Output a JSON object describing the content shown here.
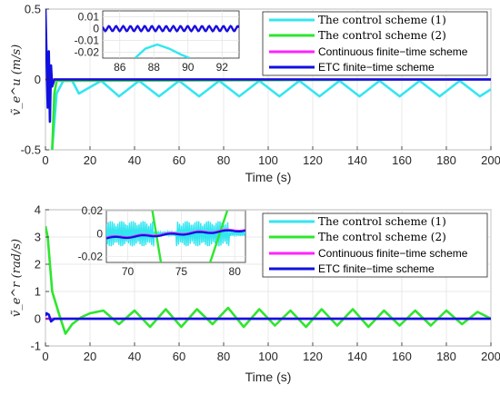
{
  "chart_data": [
    {
      "type": "line",
      "ylabel": "ṽ_e^u (m/s)",
      "xlabel": "Time (s)",
      "xlim": [
        0,
        200
      ],
      "ylim": [
        -0.5,
        0.5
      ],
      "xticks": [
        "0",
        "20",
        "40",
        "60",
        "80",
        "100",
        "120",
        "140",
        "160",
        "180",
        "200"
      ],
      "yticks": [
        "-0.5",
        "0",
        "0.5"
      ],
      "legend_position": "top-right",
      "series": [
        {
          "name": "The control scheme (1)",
          "color": "#33e6f0",
          "x": [
            3,
            5,
            8,
            12,
            15,
            25,
            33,
            42,
            51,
            60,
            69,
            78,
            87,
            96,
            105,
            114,
            123,
            132,
            141,
            150,
            159,
            168,
            177,
            186,
            195,
            200
          ],
          "y": [
            -0.5,
            -0.1,
            -0.01,
            -0.01,
            -0.1,
            -0.01,
            -0.12,
            -0.01,
            -0.12,
            -0.01,
            -0.12,
            -0.01,
            -0.12,
            -0.01,
            -0.12,
            -0.01,
            -0.12,
            -0.01,
            -0.12,
            -0.01,
            -0.12,
            -0.01,
            -0.12,
            -0.01,
            -0.12,
            -0.07
          ]
        },
        {
          "name": "The control scheme (2)",
          "color": "#2ee62e",
          "x": [
            3,
            4,
            5,
            200
          ],
          "y": [
            -0.5,
            -0.1,
            -0.01,
            0
          ]
        },
        {
          "name": "Continuous finite−time scheme",
          "color": "#ff22ff",
          "x": [
            0,
            200
          ],
          "y": [
            0,
            0
          ]
        },
        {
          "name": "ETC finite−time scheme",
          "color": "#1010e0",
          "x": [
            0,
            1,
            1.5,
            2,
            2.5,
            3,
            4,
            200
          ],
          "y": [
            0.5,
            -0.2,
            0.2,
            -0.3,
            0.1,
            -0.05,
            0,
            0
          ]
        }
      ],
      "inset": {
        "xlim": [
          85,
          93
        ],
        "ylim": [
          -0.025,
          0.015
        ],
        "xticks": [
          "86",
          "88",
          "90",
          "92"
        ],
        "yticks": [
          "0.01",
          "0",
          "-0.01",
          "-0.02"
        ],
        "cyan_x": [
          86.9,
          87.5,
          88.2,
          88.9,
          89.6,
          90.1
        ],
        "cyan_y": [
          -0.025,
          -0.017,
          -0.0135,
          -0.017,
          -0.022,
          -0.025
        ]
      }
    },
    {
      "type": "line",
      "ylabel": "ṽ_e^r (rad/s)",
      "xlabel": "Time (s)",
      "xlim": [
        0,
        200
      ],
      "ylim": [
        -1,
        4
      ],
      "xticks": [
        "0",
        "20",
        "40",
        "60",
        "80",
        "100",
        "120",
        "140",
        "160",
        "180",
        "200"
      ],
      "yticks": [
        "-1",
        "0",
        "1",
        "2",
        "3",
        "4"
      ],
      "legend_position": "top-right",
      "series": [
        {
          "name": "The control scheme (1)",
          "color": "#33e6f0",
          "x": [
            0,
            200
          ],
          "y": [
            0,
            0
          ]
        },
        {
          "name": "The control scheme (2)",
          "color": "#2ee62e",
          "x": [
            0,
            1,
            3,
            6,
            9,
            12,
            16,
            20,
            26,
            33,
            40,
            47,
            54,
            61,
            68,
            75,
            82,
            89,
            96,
            103,
            110,
            117,
            124,
            131,
            138,
            145,
            152,
            159,
            166,
            173,
            180,
            187,
            194,
            200
          ],
          "y": [
            3.4,
            3.0,
            1.0,
            0.2,
            -0.55,
            -0.2,
            0.05,
            0.2,
            0.3,
            -0.2,
            0.3,
            -0.3,
            0.35,
            -0.3,
            0.35,
            -0.2,
            0.4,
            -0.3,
            0.35,
            -0.25,
            0.3,
            -0.3,
            0.35,
            -0.25,
            0.35,
            -0.3,
            0.3,
            -0.25,
            0.3,
            -0.25,
            0.3,
            -0.2,
            0.25,
            0.0
          ]
        },
        {
          "name": "Continuous finite−time scheme",
          "color": "#ff22ff",
          "x": [
            0,
            200
          ],
          "y": [
            0,
            0
          ]
        },
        {
          "name": "ETC finite−time scheme",
          "color": "#1010e0",
          "x": [
            0,
            0.5,
            1.5,
            2.5,
            4,
            200
          ],
          "y": [
            0.1,
            0.2,
            0.15,
            -0.1,
            0,
            0
          ]
        }
      ],
      "inset": {
        "xlim": [
          68,
          81
        ],
        "ylim": [
          -0.025,
          0.02
        ],
        "xticks": [
          "70",
          "75",
          "80"
        ],
        "yticks": [
          "0.02",
          "0",
          "-0.02"
        ],
        "green_lines": [
          [
            [
              72.3,
              0.02
            ],
            [
              73.1,
              -0.025
            ]
          ],
          [
            [
              77.7,
              -0.025
            ],
            [
              79.3,
              0.02
            ]
          ]
        ]
      }
    }
  ]
}
